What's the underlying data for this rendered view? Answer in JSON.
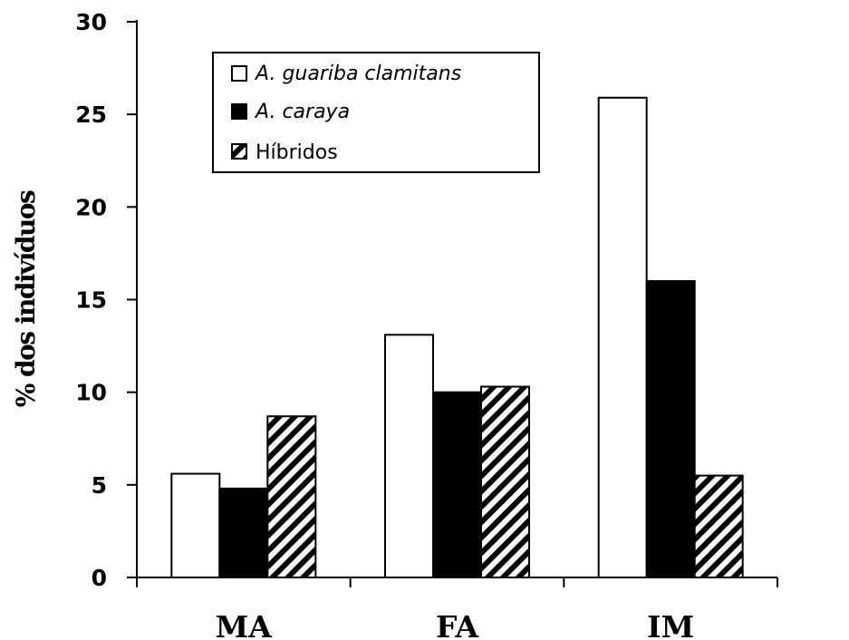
{
  "chart_data": {
    "type": "bar",
    "ylabel": "% dos indivíduos",
    "xlabel": "",
    "ylim": [
      0,
      30
    ],
    "yticks": [
      0,
      5,
      10,
      15,
      20,
      25,
      30
    ],
    "categories": [
      "MA",
      "FA",
      "IM"
    ],
    "series": [
      {
        "name": "A. guariba clamitans",
        "values": [
          5.6,
          13.1,
          25.9
        ],
        "fill": "#ffffff"
      },
      {
        "name": "A. caraya",
        "values": [
          4.8,
          10.0,
          16.0
        ],
        "fill": "#000000"
      },
      {
        "name": "Híbridos",
        "values": [
          8.7,
          10.3,
          5.5
        ],
        "fill": "hatch"
      }
    ],
    "legend": {
      "placement": "top-left"
    },
    "grid": false
  }
}
